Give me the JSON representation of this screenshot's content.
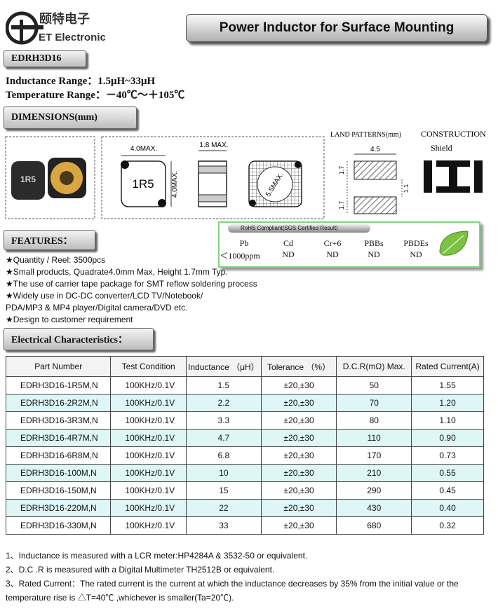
{
  "header": {
    "logo_cn": "颐特电子",
    "logo_en": "ET Electronic",
    "title": "Power Inductor for Surface Mounting"
  },
  "part_number": "EDRH3D16",
  "specs": [
    {
      "label": "Inductance Range：",
      "value": "1.5μH~33μH"
    },
    {
      "label": "Temperature Range：",
      "value": "－40℃～＋105℃"
    }
  ],
  "dimensions": {
    "heading": "DIMENSIONS(mm)",
    "photo_marking": "1R5",
    "top_width": "4.0MAX.",
    "side_height": "4.0MAX.",
    "marking": "1R5",
    "thickness": "1.8 MAX.",
    "diagonal": "5.5MAX."
  },
  "land_patterns": {
    "title": "LAND PATTERNS(mm)",
    "width": "4.5",
    "pad_height_top": "1.7",
    "gap": "1.1",
    "pad_height_bottom": "1.7"
  },
  "construction": {
    "title": "CONSTRUCTION",
    "type": "Shield"
  },
  "rohs": {
    "title": "RoHS Compliant(SGS Certified Result)",
    "substances": [
      "Pb",
      "Cd",
      "Cr+6",
      "PBBs",
      "PBDEs"
    ],
    "results": [
      "＜1000ppm",
      "ND",
      "ND",
      "ND",
      "ND"
    ]
  },
  "features": {
    "heading": "FEATURES：",
    "bullet": "★",
    "items": [
      "Quantity / Reel: 3500pcs",
      "Small products, Quadrate4.0mm Max, Height 1.7mm Typ.",
      "The use of carrier tape package for SMT reflow soldering process",
      [
        "Widely use in DC-DC converter/LCD TV/Notebook/",
        "PDA/MP3 & MP4 player/Digital camera/DVD etc."
      ],
      "Design to customer requirement"
    ]
  },
  "electrical": {
    "heading": "Electrical Characteristics：",
    "columns": [
      "Part Number",
      "Test Condition",
      "Inductance （μH）",
      "Tolerance （%）",
      "D.C.R(mΩ) Max.",
      "Rated Current(A)"
    ],
    "rows": [
      [
        "EDRH3D16-1R5M,N",
        "100KHz/0.1V",
        "1.5",
        "±20,±30",
        "50",
        "1.55"
      ],
      [
        "EDRH3D16-2R2M,N",
        "100KHz/0.1V",
        "2.2",
        "±20,±30",
        "70",
        "1.20"
      ],
      [
        "EDRH3D16-3R3M,N",
        "100KHz/0.1V",
        "3.3",
        "±20,±30",
        "80",
        "1.10"
      ],
      [
        "EDRH3D16-4R7M,N",
        "100KHz/0.1V",
        "4.7",
        "±20,±30",
        "110",
        "0.90"
      ],
      [
        "EDRH3D16-6R8M,N",
        "100KHz/0.1V",
        "6.8",
        "±20,±30",
        "170",
        "0.73"
      ],
      [
        "EDRH3D16-100M,N",
        "100KHz/0.1V",
        "10",
        "±20,±30",
        "210",
        "0.55"
      ],
      [
        "EDRH3D16-150M,N",
        "100KHz/0.1V",
        "15",
        "±20,±30",
        "290",
        "0.45"
      ],
      [
        "EDRH3D16-220M,N",
        "100KHz/0.1V",
        "22",
        "±20,±30",
        "430",
        "0.40"
      ],
      [
        "EDRH3D16-330M,N",
        "100KHz/0.1V",
        "33",
        "±20,±30",
        "680",
        "0.32"
      ]
    ]
  },
  "notes": [
    "1、Inductance is measured with a LCR meter:HP4284A & 3532-50 or equivalent.",
    "2、D.C .R is measured with a Digital Multimeter TH2512B or equivalent.",
    "3、Rated Current：The rated current is the current at which the inductance decreases by 35% from the initial value or the temperature rise is △T=40℃ ,whichever is smaller(Ta=20℃)."
  ]
}
